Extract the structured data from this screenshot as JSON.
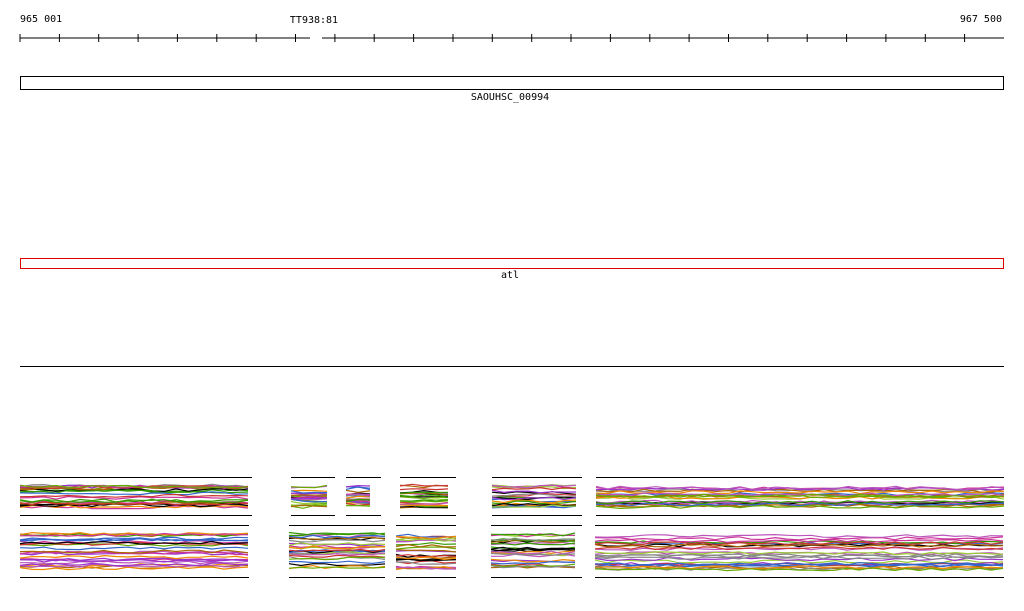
{
  "ruler": {
    "start": "965 001",
    "marker": "TT938:81",
    "end": "967 500"
  },
  "features": [
    {
      "label": "SAOUHSC_00994"
    },
    {
      "label": "atl"
    }
  ]
}
